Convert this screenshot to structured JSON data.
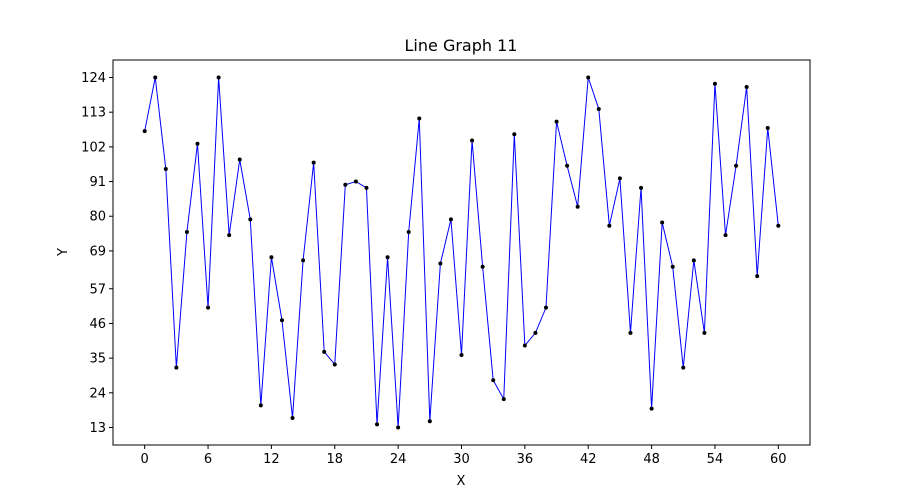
{
  "chart_data": {
    "type": "line",
    "title": "Line Graph 11",
    "xlabel": "X",
    "ylabel": "Y",
    "xlim": [
      -3,
      63
    ],
    "ylim": [
      7.45,
      129.55
    ],
    "xticks": [
      0,
      6,
      12,
      18,
      24,
      30,
      36,
      42,
      48,
      54,
      60
    ],
    "yticks": [
      13,
      24,
      35,
      46,
      57,
      69,
      80,
      91,
      102,
      113,
      124
    ],
    "grid": false,
    "line_color": "#0000ff",
    "marker_color": "#000000",
    "series": [
      {
        "x": [
          0,
          1,
          2,
          3,
          4,
          5,
          6,
          7,
          8,
          9,
          10,
          11,
          12,
          13,
          14,
          15,
          16,
          17,
          18,
          19,
          20,
          21,
          22,
          23,
          24,
          25,
          26,
          27,
          28,
          29,
          30,
          31,
          32,
          33,
          34,
          35,
          36,
          37,
          38,
          39,
          40,
          41,
          42,
          43,
          44,
          45,
          46,
          47,
          48,
          49,
          50,
          51,
          52,
          53,
          54,
          55,
          56,
          57,
          58,
          59,
          60
        ],
        "y": [
          107,
          124,
          95,
          32,
          75,
          103,
          51,
          124,
          74,
          98,
          79,
          20,
          67,
          47,
          16,
          66,
          97,
          37,
          33,
          90,
          91,
          89,
          14,
          67,
          13,
          75,
          111,
          15,
          65,
          79,
          36,
          104,
          64,
          28,
          22,
          106,
          39,
          43,
          51,
          110,
          96,
          83,
          124,
          114,
          77,
          92,
          43,
          89,
          19,
          78,
          64,
          32,
          66,
          43,
          122,
          74,
          96,
          121,
          61,
          108,
          77
        ]
      }
    ]
  }
}
